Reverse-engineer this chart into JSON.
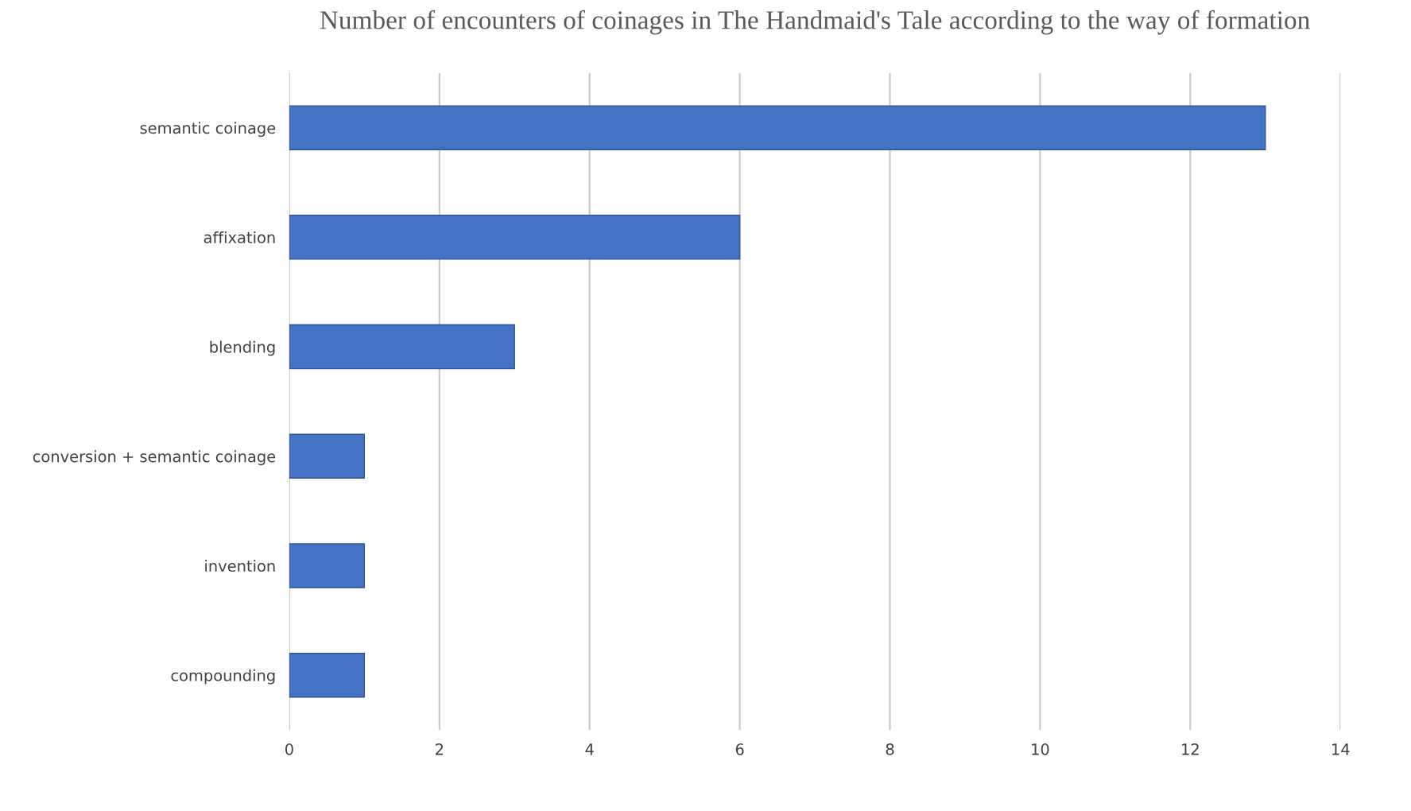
{
  "chart_data": {
    "type": "bar",
    "orientation": "horizontal",
    "title": "Number of encounters of coinages in The Handmaid's Tale according to the way of formation",
    "categories": [
      "semantic coinage",
      "affixation",
      "blending",
      "conversion + semantic coinage",
      "invention",
      "compounding"
    ],
    "values": [
      13,
      6,
      3,
      1,
      1,
      1
    ],
    "color": "#4472c4",
    "xlim": [
      0,
      14
    ],
    "xticks": [
      0,
      2,
      4,
      6,
      8,
      10,
      12,
      14
    ],
    "grid": "x",
    "legend": false
  }
}
